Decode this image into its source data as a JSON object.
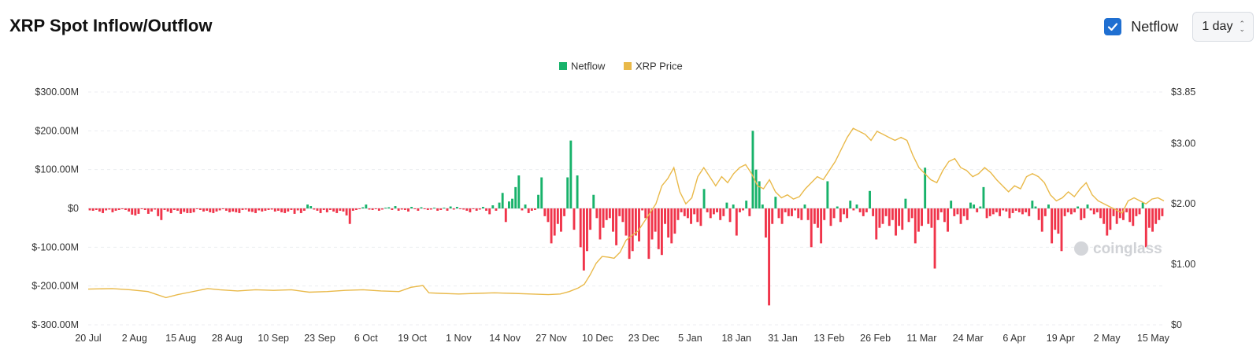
{
  "header": {
    "title": "XRP Spot Inflow/Outflow",
    "netflow_toggle_label": "Netflow",
    "netflow_checked": true,
    "period_value": "1 day"
  },
  "watermark": "coinglass",
  "colors": {
    "positive": "#17b26a",
    "negative": "#f0344a",
    "price": "#e9b949",
    "grid": "#eceef1",
    "axis_text": "#333333"
  },
  "chart_data": {
    "type": "bar",
    "legend": [
      "Netflow",
      "XRP Price"
    ],
    "legend_position": "top-center",
    "grid": true,
    "y_left": {
      "ticks": [
        300,
        200,
        100,
        0,
        -100,
        -200,
        -300
      ],
      "tick_labels": [
        "$300.00M",
        "$200.00M",
        "$100.00M",
        "$0",
        "$-100.00M",
        "$-200.00M",
        "$-300.00M"
      ],
      "range": [
        -300,
        300
      ]
    },
    "y_right": {
      "ticks": [
        3.85,
        3.0,
        2.0,
        1.0,
        0
      ],
      "tick_labels": [
        "$3.85",
        "$3.00",
        "$2.00",
        "$1.00",
        "$0"
      ],
      "range": [
        0,
        3.85
      ]
    },
    "x_tick_labels": [
      "20 Jul",
      "2 Aug",
      "15 Aug",
      "28 Aug",
      "10 Sep",
      "23 Sep",
      "6 Oct",
      "19 Oct",
      "1 Nov",
      "14 Nov",
      "27 Nov",
      "10 Dec",
      "23 Dec",
      "5 Jan",
      "18 Jan",
      "31 Jan",
      "13 Feb",
      "26 Feb",
      "11 Mar",
      "24 Mar",
      "6 Apr",
      "19 Apr",
      "2 May",
      "15 May"
    ],
    "x_range": [
      "20 Jul",
      "18 May"
    ],
    "series": [
      {
        "name": "Netflow",
        "unit": "$M",
        "values": [
          -5,
          -6,
          -4,
          -8,
          -12,
          -5,
          -3,
          -10,
          -6,
          -4,
          -2,
          -4,
          -8,
          -16,
          -18,
          -14,
          -2,
          -4,
          -14,
          -8,
          -3,
          -20,
          -30,
          -4,
          -8,
          -12,
          -4,
          -6,
          -14,
          -9,
          -12,
          -12,
          -10,
          -2,
          -4,
          -8,
          -6,
          -10,
          -12,
          -8,
          -5,
          -2,
          -6,
          -10,
          -8,
          -10,
          -12,
          -4,
          -3,
          -8,
          -9,
          -12,
          -5,
          -8,
          -6,
          -4,
          -3,
          -8,
          -6,
          -10,
          -12,
          -8,
          -4,
          -14,
          -5,
          -12,
          -6,
          10,
          6,
          -3,
          -6,
          -12,
          -4,
          -10,
          -4,
          -8,
          -12,
          -6,
          -8,
          -18,
          -40,
          -6,
          -4,
          -2,
          3,
          10,
          -3,
          -4,
          -2,
          -6,
          -3,
          2,
          3,
          -4,
          6,
          -6,
          -3,
          -4,
          -8,
          4,
          -2,
          -6,
          3,
          -2,
          -4,
          -3,
          2,
          -6,
          -4,
          2,
          -6,
          5,
          -3,
          4,
          -2,
          -3,
          -6,
          -10,
          -2,
          -6,
          -3,
          4,
          -6,
          -15,
          8,
          -6,
          15,
          40,
          -35,
          18,
          25,
          55,
          85,
          -5,
          10,
          -12,
          -6,
          -4,
          35,
          80,
          -20,
          -35,
          -90,
          -70,
          -40,
          -60,
          -20,
          80,
          175,
          -55,
          85,
          -100,
          -160,
          -110,
          -55,
          35,
          -25,
          -80,
          -50,
          -30,
          -25,
          -60,
          -95,
          -20,
          -35,
          -70,
          -130,
          -110,
          -70,
          -85,
          -5,
          -25,
          -130,
          -80,
          -60,
          -105,
          -120,
          -40,
          -75,
          -90,
          -65,
          -30,
          -10,
          -20,
          -25,
          -40,
          -15,
          -35,
          -45,
          50,
          -10,
          -25,
          -15,
          -10,
          -30,
          -20,
          15,
          -35,
          10,
          -70,
          -10,
          -5,
          20,
          -20,
          200,
          100,
          70,
          10,
          -75,
          -250,
          -40,
          30,
          -25,
          -40,
          -10,
          -20,
          -20,
          -5,
          -25,
          -30,
          10,
          -30,
          -100,
          -40,
          -50,
          -90,
          -30,
          70,
          -45,
          -25,
          5,
          -35,
          -15,
          -25,
          20,
          -5,
          10,
          -10,
          -20,
          -10,
          45,
          -20,
          -80,
          -50,
          -40,
          -20,
          -45,
          -30,
          -70,
          -45,
          -55,
          25,
          -35,
          -25,
          -90,
          -60,
          -45,
          105,
          -40,
          -50,
          -155,
          -30,
          -10,
          -35,
          -60,
          20,
          -20,
          -15,
          -40,
          -20,
          -30,
          15,
          10,
          -10,
          5,
          55,
          -25,
          -20,
          -15,
          -10,
          -20,
          -5,
          -8,
          -25,
          -12,
          -6,
          -10,
          -15,
          -10,
          -20,
          20,
          5,
          -30,
          -60,
          -20,
          10,
          -90,
          -55,
          -65,
          -110,
          -20,
          -10,
          -15,
          -10,
          5,
          -30,
          -25,
          10,
          -5,
          -15,
          -10,
          -25,
          -40,
          -70,
          -55,
          -20,
          -40,
          -25,
          -30,
          -10,
          -35,
          -45,
          -20,
          -15,
          15,
          -100,
          -50,
          -60,
          -40,
          -30,
          -20
        ]
      },
      {
        "name": "XRP Price",
        "unit": "$",
        "points": [
          [
            0,
            0.59
          ],
          [
            8,
            0.6
          ],
          [
            14,
            0.58
          ],
          [
            20,
            0.55
          ],
          [
            26,
            0.45
          ],
          [
            30,
            0.5
          ],
          [
            34,
            0.54
          ],
          [
            40,
            0.6
          ],
          [
            44,
            0.58
          ],
          [
            50,
            0.56
          ],
          [
            56,
            0.58
          ],
          [
            62,
            0.57
          ],
          [
            68,
            0.58
          ],
          [
            74,
            0.54
          ],
          [
            80,
            0.55
          ],
          [
            86,
            0.57
          ],
          [
            92,
            0.58
          ],
          [
            98,
            0.56
          ],
          [
            104,
            0.55
          ],
          [
            108,
            0.62
          ],
          [
            112,
            0.65
          ],
          [
            114,
            0.53
          ],
          [
            118,
            0.52
          ],
          [
            124,
            0.51
          ],
          [
            130,
            0.52
          ],
          [
            136,
            0.53
          ],
          [
            142,
            0.52
          ],
          [
            148,
            0.51
          ],
          [
            154,
            0.5
          ],
          [
            158,
            0.51
          ],
          [
            161,
            0.55
          ],
          [
            164,
            0.61
          ],
          [
            166,
            0.67
          ],
          [
            168,
            0.83
          ],
          [
            170,
            1.02
          ],
          [
            172,
            1.13
          ],
          [
            174,
            1.12
          ],
          [
            176,
            1.1
          ],
          [
            178,
            1.2
          ],
          [
            180,
            1.4
          ],
          [
            182,
            1.48
          ],
          [
            184,
            1.55
          ],
          [
            186,
            1.7
          ],
          [
            188,
            1.85
          ],
          [
            190,
            2.0
          ],
          [
            192,
            2.3
          ],
          [
            194,
            2.42
          ],
          [
            196,
            2.6
          ],
          [
            198,
            2.2
          ],
          [
            200,
            2.0
          ],
          [
            202,
            2.1
          ],
          [
            204,
            2.45
          ],
          [
            206,
            2.6
          ],
          [
            208,
            2.45
          ],
          [
            210,
            2.3
          ],
          [
            212,
            2.45
          ],
          [
            214,
            2.35
          ],
          [
            216,
            2.5
          ],
          [
            218,
            2.6
          ],
          [
            220,
            2.65
          ],
          [
            222,
            2.5
          ],
          [
            224,
            2.3
          ],
          [
            226,
            2.25
          ],
          [
            228,
            2.4
          ],
          [
            230,
            2.2
          ],
          [
            232,
            2.1
          ],
          [
            234,
            2.15
          ],
          [
            236,
            2.08
          ],
          [
            238,
            2.12
          ],
          [
            240,
            2.25
          ],
          [
            242,
            2.35
          ],
          [
            244,
            2.45
          ],
          [
            246,
            2.4
          ],
          [
            248,
            2.55
          ],
          [
            250,
            2.7
          ],
          [
            252,
            2.9
          ],
          [
            254,
            3.1
          ],
          [
            256,
            3.25
          ],
          [
            258,
            3.2
          ],
          [
            260,
            3.15
          ],
          [
            262,
            3.05
          ],
          [
            264,
            3.2
          ],
          [
            266,
            3.15
          ],
          [
            268,
            3.1
          ],
          [
            270,
            3.05
          ],
          [
            272,
            3.1
          ],
          [
            274,
            3.05
          ],
          [
            276,
            2.8
          ],
          [
            278,
            2.6
          ],
          [
            280,
            2.5
          ],
          [
            282,
            2.4
          ],
          [
            284,
            2.35
          ],
          [
            286,
            2.55
          ],
          [
            288,
            2.7
          ],
          [
            290,
            2.75
          ],
          [
            292,
            2.6
          ],
          [
            294,
            2.55
          ],
          [
            296,
            2.45
          ],
          [
            298,
            2.5
          ],
          [
            300,
            2.6
          ],
          [
            302,
            2.52
          ],
          [
            304,
            2.4
          ],
          [
            306,
            2.3
          ],
          [
            308,
            2.2
          ],
          [
            310,
            2.3
          ],
          [
            312,
            2.25
          ],
          [
            314,
            2.45
          ],
          [
            316,
            2.5
          ],
          [
            318,
            2.45
          ],
          [
            320,
            2.35
          ],
          [
            322,
            2.15
          ],
          [
            324,
            2.05
          ],
          [
            326,
            2.1
          ],
          [
            328,
            2.2
          ],
          [
            330,
            2.12
          ],
          [
            332,
            2.25
          ],
          [
            334,
            2.35
          ],
          [
            336,
            2.15
          ],
          [
            338,
            2.05
          ],
          [
            340,
            2.0
          ],
          [
            342,
            1.95
          ],
          [
            344,
            1.9
          ],
          [
            346,
            1.85
          ],
          [
            348,
            2.05
          ],
          [
            350,
            2.1
          ],
          [
            352,
            2.05
          ],
          [
            354,
            2.0
          ],
          [
            356,
            2.08
          ],
          [
            358,
            2.1
          ],
          [
            360,
            2.05
          ]
        ]
      }
    ]
  }
}
